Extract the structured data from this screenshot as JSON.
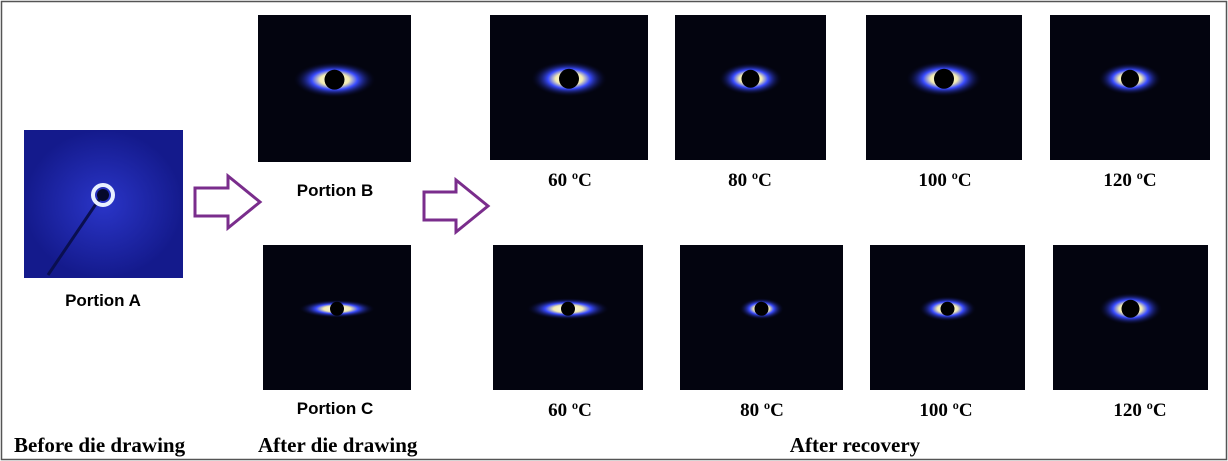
{
  "panels": {
    "portion_a": "Portion A",
    "portion_b": "Portion B",
    "portion_c": "Portion C"
  },
  "recovery": {
    "top": [
      "60 ºC",
      "80 ºC",
      "100 ºC",
      "120 ºC"
    ],
    "bottom": [
      "60 ºC",
      "80 ºC",
      "100 ºC",
      "120 ºC"
    ]
  },
  "captions": {
    "before": "Before die drawing",
    "after_drawing": "After die drawing",
    "after_recovery": "After recovery"
  }
}
